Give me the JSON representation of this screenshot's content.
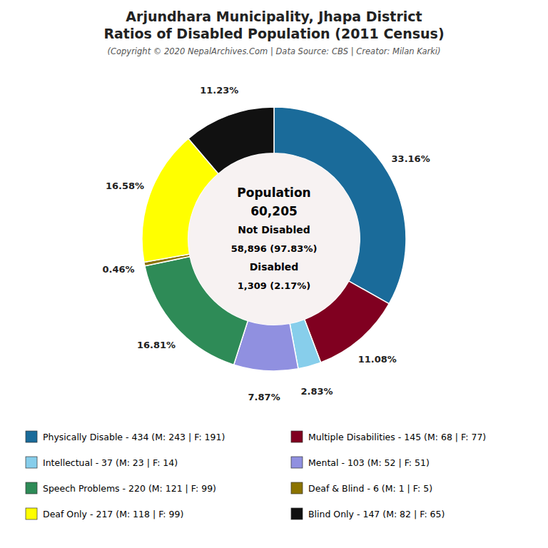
{
  "chart_data": {
    "type": "pie",
    "title": [
      "Arjundhara Municipality, Jhapa District",
      "Ratios of Disabled Population (2011 Census)"
    ],
    "subtitle": "(Copyright © 2020 NepalArchives.Com | Data Source: CBS | Creator: Milan Karki)",
    "categories": [
      "Physically Disable - 434 (M: 243 | F: 191)",
      "Multiple Disabilities - 145 (M: 68 | F: 77)",
      "Intellectual - 37 (M: 23 | F: 14)",
      "Mental - 103 (M: 52 | F: 51)",
      "Speech Problems - 220 (M: 121 | F: 99)",
      "Deaf & Blind - 6 (M: 1 | F: 5)",
      "Deaf Only - 217 (M: 118 | F: 99)",
      "Blind Only - 147 (M: 82 | F: 65)"
    ],
    "values": [
      33.16,
      11.08,
      2.83,
      7.87,
      16.81,
      0.46,
      16.58,
      11.23
    ],
    "value_labels": [
      "33.16%",
      "11.08%",
      "2.83%",
      "7.87%",
      "16.81%",
      "0.46%",
      "16.58%",
      "11.23%"
    ],
    "colors": [
      "#1a6b9a",
      "#800020",
      "#87ceeb",
      "#9090e0",
      "#2e8b57",
      "#8b7300",
      "#ffff00",
      "#111111"
    ],
    "data_labels": true,
    "legend": "bottom",
    "annotations": [
      "Population",
      "60,205",
      "Not Disabled",
      "58,896 (97.83%)",
      "Disabled",
      "1,309 (2.17%)"
    ]
  }
}
